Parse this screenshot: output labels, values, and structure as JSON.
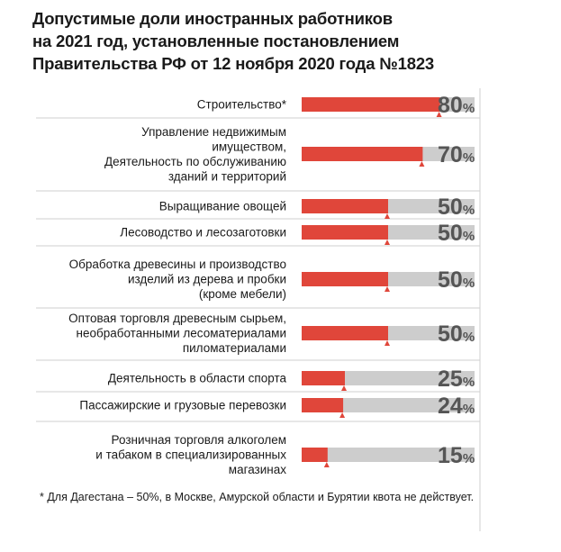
{
  "title_lines": [
    "Допустимые доли иностранных работников",
    "на 2021 год, установленные постановлением",
    "Правительства РФ от 12 ноября 2020 года №1823"
  ],
  "colors": {
    "bar": "#e0463a",
    "track": "#cdcdcd",
    "marker": "#e0463a",
    "value_text": "#555555",
    "separator": "#cfcfcf"
  },
  "chart_data": {
    "type": "bar",
    "orientation": "horizontal",
    "value_unit": "%",
    "xlim": [
      0,
      100
    ],
    "categories": [
      [
        "Строительство*"
      ],
      [
        "Управление недвижимым",
        "имуществом,",
        "Деятельность по обслуживанию",
        "зданий и территорий"
      ],
      [
        "Выращивание овощей"
      ],
      [
        "Лесоводство и лесозаготовки"
      ],
      [
        "Обработка древесины и производство",
        "изделий из дерева и пробки",
        "(кроме мебели)"
      ],
      [
        "Оптовая торговля древесным сырьем,",
        "необработанными лесоматериалами",
        "пиломатериалами"
      ],
      [
        "Деятельность в области спорта"
      ],
      [
        "Пассажирские и грузовые перевозки"
      ],
      [
        "Розничная торговля алкоголем",
        "и табаком в специализированных",
        "магазинах"
      ]
    ],
    "values": [
      80,
      70,
      50,
      50,
      50,
      50,
      25,
      24,
      15
    ]
  },
  "footnote": "* Для Дагестана – 50%, в Москве, Амурской области и Бурятии квота не действует."
}
